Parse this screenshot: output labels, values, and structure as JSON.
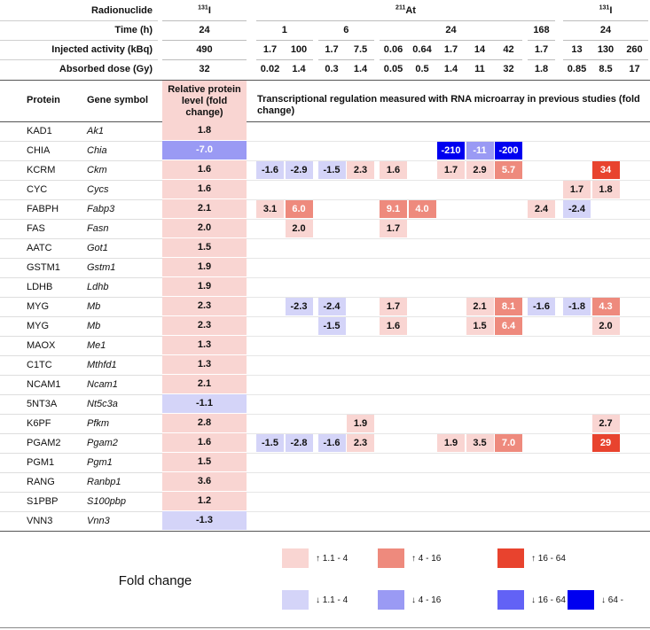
{
  "header": {
    "row_labels": [
      "Radionuclide",
      "Time (h)",
      "Injected activity (kBq)",
      "Absorbed dose (Gy)"
    ],
    "groups": [
      {
        "nuclide": {
          "mass": "131",
          "element": "I"
        },
        "times": [
          {
            "time": "24",
            "conditions": [
              [
                "490",
                "32"
              ]
            ]
          }
        ]
      },
      {
        "nuclide": {
          "mass": "211",
          "element": "At"
        },
        "times": [
          {
            "time": "1",
            "conditions": [
              [
                "1.7",
                "0.02"
              ],
              [
                "100",
                "1.4"
              ]
            ]
          },
          {
            "time": "6",
            "conditions": [
              [
                "1.7",
                "0.3"
              ],
              [
                "7.5",
                "1.4"
              ]
            ]
          },
          {
            "time": "24",
            "conditions": [
              [
                "0.06",
                "0.05"
              ],
              [
                "0.64",
                "0.5"
              ],
              [
                "1.7",
                "1.4"
              ],
              [
                "14",
                "11"
              ],
              [
                "42",
                "32"
              ]
            ]
          },
          {
            "time": "168",
            "conditions": [
              [
                "1.7",
                "1.8"
              ]
            ]
          }
        ]
      },
      {
        "nuclide": {
          "mass": "131",
          "element": "I"
        },
        "times": [
          {
            "time": "24",
            "conditions": [
              [
                "13",
                "0.85"
              ],
              [
                "130",
                "8.5"
              ],
              [
                "260",
                "17"
              ]
            ]
          }
        ]
      }
    ]
  },
  "columns": {
    "protein": "Protein",
    "gene": "Gene symbol",
    "relative": "Relative protein level (fold change)",
    "transcriptional": "Transcriptional regulation measured with RNA microarray in previous studies (fold change)"
  },
  "rows": [
    {
      "protein": "KAD1",
      "gene": "Ak1",
      "relative": "1.8",
      "microarray": [
        null,
        null,
        null,
        null,
        null,
        null,
        null,
        null,
        null,
        null,
        null,
        null,
        null
      ]
    },
    {
      "protein": "CHIA",
      "gene": "Chia",
      "relative": "-7.0",
      "microarray": [
        null,
        null,
        null,
        null,
        null,
        null,
        "-210",
        "-11",
        "-200",
        null,
        null,
        null,
        null
      ]
    },
    {
      "protein": "KCRM",
      "gene": "Ckm",
      "relative": "1.6",
      "microarray": [
        "-1.6",
        "-2.9",
        "-1.5",
        "2.3",
        "1.6",
        null,
        "1.7",
        "2.9",
        "5.7",
        null,
        null,
        "34",
        null
      ]
    },
    {
      "protein": "CYC",
      "gene": "Cycs",
      "relative": "1.6",
      "microarray": [
        null,
        null,
        null,
        null,
        null,
        null,
        null,
        null,
        null,
        null,
        "1.7",
        "1.8",
        null
      ]
    },
    {
      "protein": "FABPH",
      "gene": "Fabp3",
      "relative": "2.1",
      "microarray": [
        "3.1",
        "6.0",
        null,
        null,
        "9.1",
        "4.0",
        null,
        null,
        null,
        "2.4",
        "-2.4",
        null,
        null
      ]
    },
    {
      "protein": "FAS",
      "gene": "Fasn",
      "relative": "2.0",
      "microarray": [
        null,
        "2.0",
        null,
        null,
        "1.7",
        null,
        null,
        null,
        null,
        null,
        null,
        null,
        null
      ]
    },
    {
      "protein": "AATC",
      "gene": "Got1",
      "relative": "1.5",
      "microarray": [
        null,
        null,
        null,
        null,
        null,
        null,
        null,
        null,
        null,
        null,
        null,
        null,
        null
      ]
    },
    {
      "protein": "GSTM1",
      "gene": "Gstm1",
      "relative": "1.9",
      "microarray": [
        null,
        null,
        null,
        null,
        null,
        null,
        null,
        null,
        null,
        null,
        null,
        null,
        null
      ]
    },
    {
      "protein": "LDHB",
      "gene": "Ldhb",
      "relative": "1.9",
      "microarray": [
        null,
        null,
        null,
        null,
        null,
        null,
        null,
        null,
        null,
        null,
        null,
        null,
        null
      ]
    },
    {
      "protein": "MYG",
      "gene": "Mb",
      "relative": "2.3",
      "microarray": [
        null,
        "-2.3",
        "-2.4",
        null,
        "1.7",
        null,
        null,
        "2.1",
        "8.1",
        "-1.6",
        "-1.8",
        "4.3",
        null
      ]
    },
    {
      "protein": "MYG",
      "gene": "Mb",
      "relative": "2.3",
      "microarray": [
        null,
        null,
        "-1.5",
        null,
        "1.6",
        null,
        null,
        "1.5",
        "6.4",
        null,
        null,
        "2.0",
        null
      ]
    },
    {
      "protein": "MAOX",
      "gene": "Me1",
      "relative": "1.3",
      "microarray": [
        null,
        null,
        null,
        null,
        null,
        null,
        null,
        null,
        null,
        null,
        null,
        null,
        null
      ]
    },
    {
      "protein": "C1TC",
      "gene": "Mthfd1",
      "relative": "1.3",
      "microarray": [
        null,
        null,
        null,
        null,
        null,
        null,
        null,
        null,
        null,
        null,
        null,
        null,
        null
      ]
    },
    {
      "protein": "NCAM1",
      "gene": "Ncam1",
      "relative": "2.1",
      "microarray": [
        null,
        null,
        null,
        null,
        null,
        null,
        null,
        null,
        null,
        null,
        null,
        null,
        null
      ]
    },
    {
      "protein": "5NT3A",
      "gene": "Nt5c3a",
      "relative": "-1.1",
      "microarray": [
        null,
        null,
        null,
        null,
        null,
        null,
        null,
        null,
        null,
        null,
        null,
        null,
        null
      ]
    },
    {
      "protein": "K6PF",
      "gene": "Pfkm",
      "relative": "2.8",
      "microarray": [
        null,
        null,
        null,
        "1.9",
        null,
        null,
        null,
        null,
        null,
        null,
        null,
        "2.7",
        null
      ]
    },
    {
      "protein": "PGAM2",
      "gene": "Pgam2",
      "relative": "1.6",
      "microarray": [
        "-1.5",
        "-2.8",
        "-1.6",
        "2.3",
        null,
        null,
        "1.9",
        "3.5",
        "7.0",
        null,
        null,
        "29",
        null
      ]
    },
    {
      "protein": "PGM1",
      "gene": "Pgm1",
      "relative": "1.5",
      "microarray": [
        null,
        null,
        null,
        null,
        null,
        null,
        null,
        null,
        null,
        null,
        null,
        null,
        null
      ]
    },
    {
      "protein": "RANG",
      "gene": "Ranbp1",
      "relative": "3.6",
      "microarray": [
        null,
        null,
        null,
        null,
        null,
        null,
        null,
        null,
        null,
        null,
        null,
        null,
        null
      ]
    },
    {
      "protein": "S1PBP",
      "gene": "S100pbp",
      "relative": "1.2",
      "microarray": [
        null,
        null,
        null,
        null,
        null,
        null,
        null,
        null,
        null,
        null,
        null,
        null,
        null
      ]
    },
    {
      "protein": "VNN3",
      "gene": "Vnn3",
      "relative": "-1.3",
      "microarray": [
        null,
        null,
        null,
        null,
        null,
        null,
        null,
        null,
        null,
        null,
        null,
        null,
        null
      ]
    }
  ],
  "legend": {
    "title": "Fold change",
    "items": [
      {
        "label": "↑ 1.1 - 4",
        "color": "#f9d5d2",
        "text_color": "#111111",
        "range": [
          1.1,
          4
        ]
      },
      {
        "label": "↑ 4 - 16",
        "color": "#ee8a7d",
        "text_color": "#ffffff",
        "range": [
          4,
          16
        ]
      },
      {
        "label": "↑ 16 - 64",
        "color": "#e8432e",
        "text_color": "#ffffff",
        "range": [
          16,
          64
        ]
      },
      {
        "label": "↓ 1.1 - 4",
        "color": "#d4d4f8",
        "text_color": "#111111",
        "range": [
          -1.1,
          -4
        ]
      },
      {
        "label": "↓ 4 - 16",
        "color": "#9a9af4",
        "text_color": "#ffffff",
        "range": [
          -4,
          -16
        ]
      },
      {
        "label": "↓ 16 - 64",
        "color": "#6262f6",
        "text_color": "#ffffff",
        "range": [
          -16,
          -64
        ]
      },
      {
        "label": "↓ 64 -",
        "color": "#0000f0",
        "text_color": "#ffffff",
        "range": [
          -64,
          null
        ]
      }
    ]
  }
}
